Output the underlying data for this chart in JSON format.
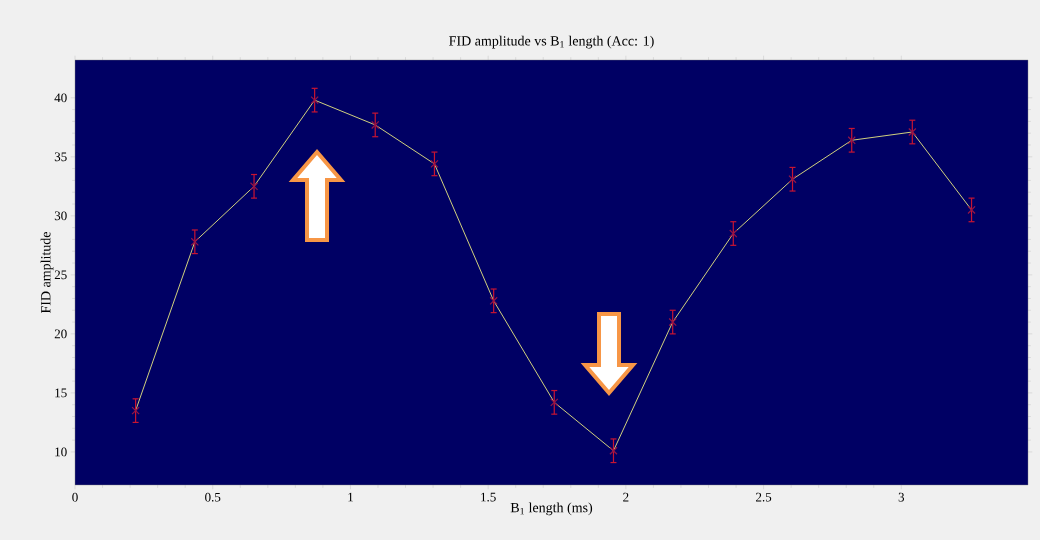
{
  "chart_data": {
    "type": "line",
    "title": "FID amplitude vs B$_{1}$ length (Acc: 1)",
    "xlabel": "B$_{1}$ length (ms)",
    "ylabel": "FID amplitude",
    "x": [
      0.22,
      0.435,
      0.65,
      0.87,
      1.09,
      1.305,
      1.52,
      1.74,
      1.955,
      2.17,
      2.39,
      2.605,
      2.82,
      3.04,
      3.255
    ],
    "series": [
      {
        "color": "#e8e880",
        "values": [
          13.5,
          27.8,
          32.5,
          39.8,
          37.7,
          34.4,
          22.8,
          14.2,
          10.1,
          21.0,
          28.5,
          33.1,
          36.4,
          37.1,
          30.5
        ],
        "errors": [
          1,
          1,
          1,
          1,
          1,
          1,
          1,
          1,
          1,
          1,
          1,
          1,
          1,
          1,
          1
        ]
      }
    ],
    "marker": "cross",
    "line_style": "solid",
    "grid": false,
    "xlim": [
      0,
      3.46
    ],
    "ylim": [
      7.2,
      43.2
    ],
    "xticks": [
      0,
      0.5,
      1,
      1.5,
      2,
      2.5,
      3
    ],
    "yticks": [
      10,
      15,
      20,
      25,
      30,
      35,
      40
    ]
  }
}
